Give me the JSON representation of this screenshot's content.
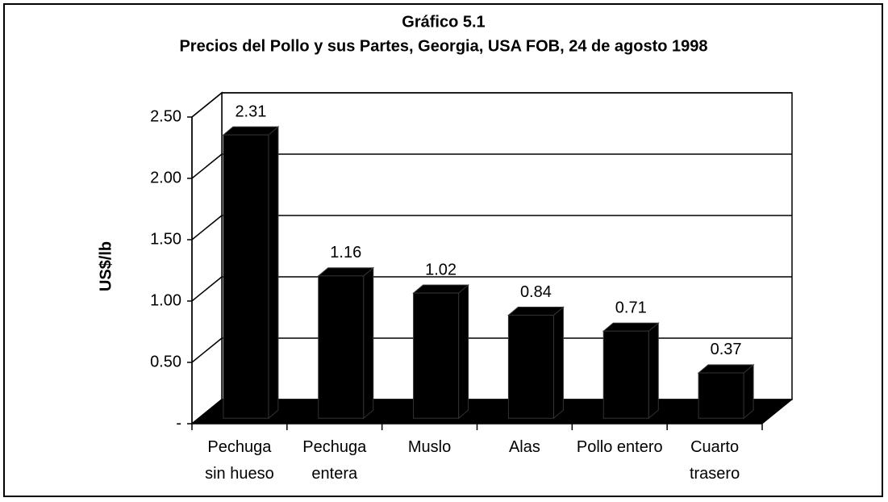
{
  "chart_data": {
    "type": "bar3d",
    "title": "Gráfico 5.1",
    "subtitle": "Precios del Pollo y sus Partes, Georgia, USA FOB, 24 de agosto 1998",
    "y_label": "US$/lb",
    "categories": [
      "Pechuga sin hueso",
      "Pechuga entera",
      "Muslo",
      "Alas",
      "Pollo entero",
      "Cuarto trasero"
    ],
    "values": [
      2.31,
      1.16,
      1.02,
      0.84,
      0.71,
      0.37
    ],
    "color": "#000000",
    "ylim": [
      0,
      2.5
    ],
    "yticks": [
      {
        "value": 0,
        "label": "-"
      },
      {
        "value": 0.5,
        "label": "0.50"
      },
      {
        "value": 1,
        "label": "1.00"
      },
      {
        "value": 1.5,
        "label": "1.50"
      },
      {
        "value": 2,
        "label": "2.00"
      },
      {
        "value": 2.5,
        "label": "2.50"
      }
    ],
    "grid": true
  }
}
